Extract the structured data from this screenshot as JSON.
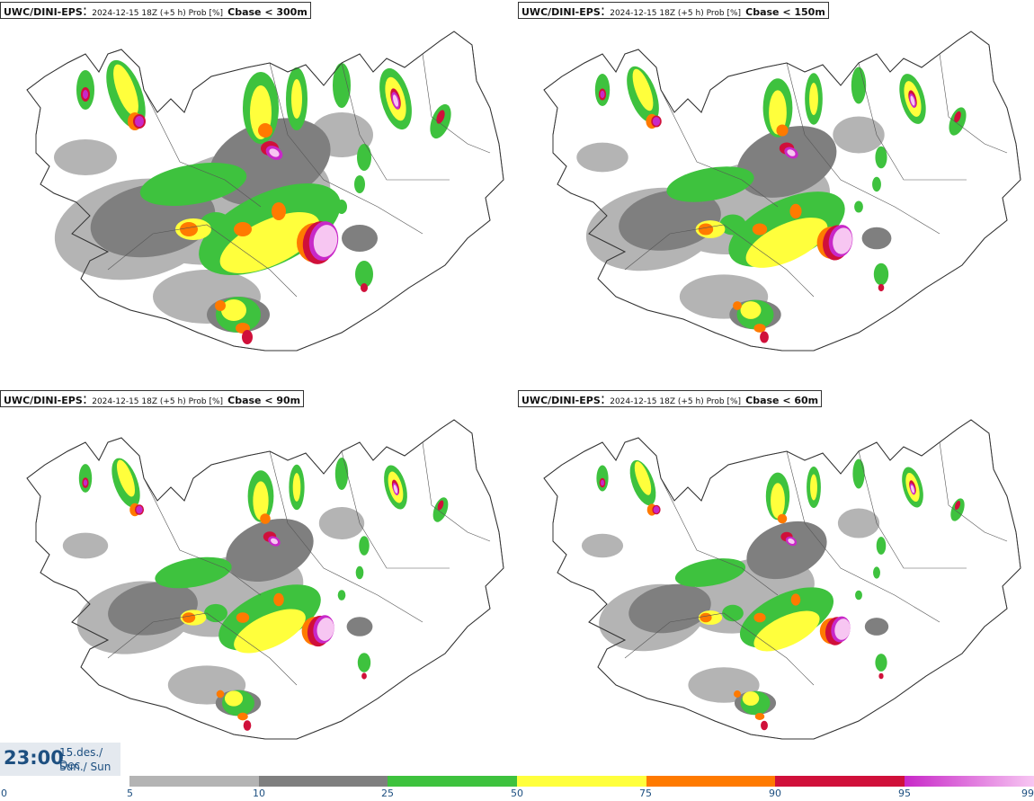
{
  "panels": [
    {
      "model": "UWC/DINI-EPS",
      "meta": "2024-12-15 18Z (+5 h) Prob [%]",
      "param": "Cbase < 300m"
    },
    {
      "model": "UWC/DINI-EPS",
      "meta": "2024-12-15 18Z (+5 h) Prob [%]",
      "param": "Cbase < 150m"
    },
    {
      "model": "UWC/DINI-EPS",
      "meta": "2024-12-15 18Z (+5 h) Prob [%]",
      "param": "Cbase < 90m"
    },
    {
      "model": "UWC/DINI-EPS",
      "meta": "2024-12-15 18Z (+5 h) Prob [%]",
      "param": "Cbase < 60m"
    }
  ],
  "time": {
    "clock": "23:00",
    "date_line": "15.des./ Dec",
    "day_line": "Sun./ Sun"
  },
  "legend": {
    "ticks": [
      "0",
      "5",
      "10",
      "25",
      "50",
      "75",
      "90",
      "95",
      "99"
    ],
    "colors": [
      "#ffffff",
      "#b4b4b4",
      "#7f7f7f",
      "#3ec23e",
      "#ffff3c",
      "#ff7a00",
      "#d0103a",
      "#c828c8",
      "#f7c6f2"
    ]
  }
}
